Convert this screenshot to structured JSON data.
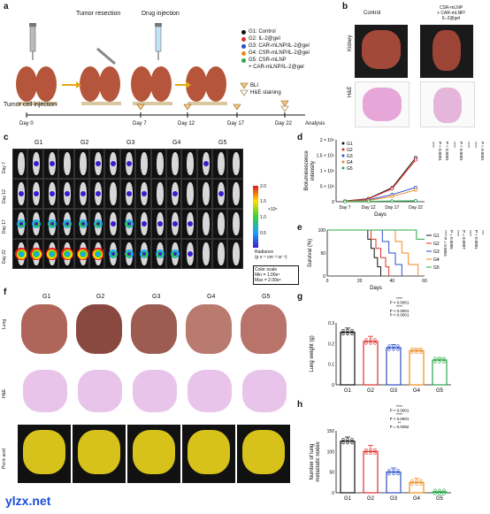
{
  "panels": {
    "a": "a",
    "b": "b",
    "c": "c",
    "d": "d",
    "e": "e",
    "f": "f",
    "g": "g",
    "h": "h"
  },
  "a": {
    "tumor_resection": "Tumor resection",
    "drug_injection": "Drug injection",
    "tumor_cell_injection": "Tumor cell injection",
    "bli": "BLI",
    "he": "H&E staining",
    "days": [
      "Day 0",
      "Day 7",
      "Day 12",
      "Day 17",
      "Day 22"
    ],
    "analysis": "Analysis",
    "groups": [
      {
        "label": "G1: Control",
        "color": "#111111"
      },
      {
        "label": "G2: IL-2@gel",
        "color": "#e0302c"
      },
      {
        "label": "G3: CAR-mLNP/IL-2@gel",
        "color": "#2e4fc9"
      },
      {
        "label": "G4: CSR-mLNP/IL-2@gel",
        "color": "#f08a1c"
      },
      {
        "label": "G5: CSR-mLNP",
        "color": "#2aa84a"
      },
      {
        "label": "+ CAR-mLNP/IL-2@gel",
        "color": ""
      }
    ]
  },
  "b": {
    "control": "Control",
    "treated": "CSR-mLNP\n+ CAR-mLNP/\nIL-2@gel",
    "row1": "Kidney",
    "row2": "H&E"
  },
  "c": {
    "groups": [
      "G1",
      "G2",
      "G3",
      "G4",
      "G5"
    ],
    "days": [
      "Day 7",
      "Day 12",
      "Day 17",
      "Day 22"
    ],
    "scale_max": "2.0",
    "scale_mid": "1.5",
    "scale_1": "1.0",
    "scale_05": "0.5",
    "multiplier": "×10⁶",
    "radiance": "Radiance\n(p s⁻¹ cm⁻² sr⁻¹)",
    "color_scale": "Color scale\nMin = 1.00e⁵\nMax = 2.00e⁶"
  },
  "chart_data": [
    {
      "type": "line",
      "panel": "d",
      "ylabel": "Bioluminescence\nintensity",
      "xlabel": "Days",
      "y_tick_labels": [
        "0",
        "5 × 10⁸",
        "1 × 10⁹",
        "1.5 × 10⁹",
        "2 × 10⁹"
      ],
      "ylim": [
        0,
        2000000000
      ],
      "categories": [
        "Day 7",
        "Day 12",
        "Day 17",
        "Day 22"
      ],
      "series": [
        {
          "name": "G1",
          "color": "#111111",
          "values": [
            20000000,
            100000000,
            450000000,
            1420000000
          ]
        },
        {
          "name": "G2",
          "color": "#e0302c",
          "values": [
            20000000,
            90000000,
            420000000,
            1350000000
          ]
        },
        {
          "name": "G3",
          "color": "#2e4fc9",
          "values": [
            15000000,
            60000000,
            230000000,
            460000000
          ]
        },
        {
          "name": "G4",
          "color": "#f08a1c",
          "values": [
            10000000,
            40000000,
            170000000,
            380000000
          ]
        },
        {
          "name": "G5",
          "color": "#2aa84a",
          "values": [
            5000000,
            10000000,
            20000000,
            30000000
          ]
        }
      ],
      "annotations": [
        "****",
        "P < 0.0001",
        "P < 0.0001",
        "****",
        "P < 0.0001",
        "****",
        "****",
        "P < 0.0001"
      ]
    },
    {
      "type": "line",
      "panel": "e",
      "ylabel": "Survival (%)",
      "xlabel": "Days",
      "x_tick_labels": [
        "0",
        "20",
        "40",
        "60"
      ],
      "y_tick_labels": [
        "0",
        "50",
        "100"
      ],
      "xlim": [
        0,
        60
      ],
      "ylim": [
        0,
        100
      ],
      "series": [
        {
          "name": "G1",
          "color": "#111111",
          "x": [
            0,
            23,
            25,
            27,
            29,
            31,
            33
          ],
          "y": [
            100,
            100,
            80,
            60,
            40,
            20,
            0
          ]
        },
        {
          "name": "G2",
          "color": "#e0302c",
          "x": [
            0,
            24,
            27,
            30,
            33,
            36,
            38
          ],
          "y": [
            100,
            100,
            80,
            60,
            40,
            20,
            0
          ]
        },
        {
          "name": "G3",
          "color": "#2e4fc9",
          "x": [
            0,
            30,
            34,
            38,
            42,
            46
          ],
          "y": [
            100,
            100,
            75,
            50,
            25,
            0
          ]
        },
        {
          "name": "G4",
          "color": "#f08a1c",
          "x": [
            0,
            38,
            42,
            46,
            50,
            56
          ],
          "y": [
            100,
            100,
            75,
            50,
            25,
            0
          ]
        },
        {
          "name": "G5",
          "color": "#2aa84a",
          "x": [
            0,
            48,
            55,
            60
          ],
          "y": [
            100,
            100,
            80,
            80
          ]
        }
      ],
      "annotations": [
        "**** P = 0.0001",
        "P = 0.0005",
        "****",
        "P = 0.0007",
        "****",
        "P < 0.0001",
        "***"
      ]
    },
    {
      "type": "bar",
      "panel": "g",
      "ylabel": "Lung weight (g)",
      "categories": [
        "G1",
        "G2",
        "G3",
        "G4",
        "G5"
      ],
      "values": [
        0.255,
        0.21,
        0.18,
        0.165,
        0.12
      ],
      "errors": [
        0.02,
        0.025,
        0.015,
        0.01,
        0.008
      ],
      "colors": [
        "#111111",
        "#e0302c",
        "#2e4fc9",
        "#f08a1c",
        "#2aa84a"
      ],
      "ylim": [
        0,
        0.3
      ],
      "y_tick_labels": [
        "0",
        "0.1",
        "0.2",
        "0.3"
      ],
      "annotations": [
        "****",
        "P < 0.0001",
        "****",
        "P < 0.0001",
        "P < 0.0001"
      ]
    },
    {
      "type": "bar",
      "panel": "h",
      "ylabel": "Number of lung\nmetastatic nodes",
      "categories": [
        "G1",
        "G2",
        "G3",
        "G4",
        "G5"
      ],
      "values": [
        125,
        100,
        50,
        25,
        2
      ],
      "errors": [
        10,
        15,
        10,
        10,
        1
      ],
      "colors": [
        "#111111",
        "#e0302c",
        "#2e4fc9",
        "#f08a1c",
        "#2aa84a"
      ],
      "ylim": [
        0,
        150
      ],
      "y_tick_labels": [
        "0",
        "50",
        "100",
        "150"
      ],
      "annotations": [
        "****",
        "P < 0.0001",
        "****",
        "P < 0.0001",
        "**",
        "P = 0.0092"
      ]
    }
  ],
  "f": {
    "groups": [
      "G1",
      "G2",
      "G3",
      "G4",
      "G5"
    ],
    "rows": [
      "Lung",
      "H&E",
      "Picric acid"
    ]
  },
  "watermark": "ylzx.net"
}
